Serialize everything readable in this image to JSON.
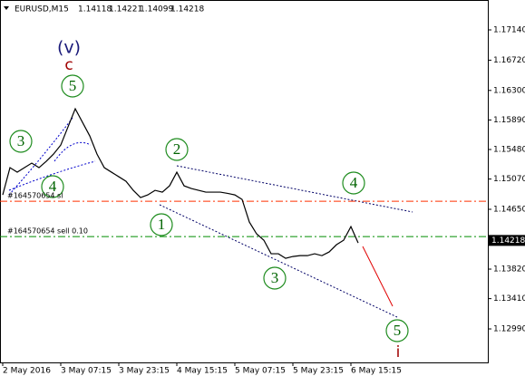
{
  "chart_data": {
    "type": "line",
    "title": "EURUSD,M15",
    "ohlc": [
      1.14118,
      1.14221,
      1.14099,
      1.14218
    ],
    "bid": 1.14218,
    "color": "#000000",
    "categories": [
      "2 May 2016",
      null,
      null,
      null,
      null,
      null,
      null,
      null,
      "3 May 07:15",
      null,
      null,
      null,
      null,
      null,
      null,
      null,
      "3 May 23:15",
      null,
      null,
      null,
      null,
      null,
      null,
      null,
      "4 May 15:15",
      null,
      null,
      null,
      null,
      null,
      null,
      null,
      "5 May 07:15",
      null,
      null,
      null,
      null,
      null,
      null,
      null,
      "5 May 23:15",
      null,
      null,
      null,
      null,
      null,
      null,
      null,
      "6 May 15:15",
      null,
      null,
      null,
      null,
      null,
      null,
      null,
      null,
      null,
      null,
      null,
      null,
      null,
      null,
      null,
      null,
      null,
      null
    ],
    "values": [
      1.1485,
      1.15228,
      1.15165,
      1.15228,
      1.15291,
      1.15228,
      1.15316,
      1.15416,
      1.15542,
      1.15794,
      1.16045,
      1.15857,
      1.15668,
      1.15416,
      1.15228,
      1.15165,
      1.15102,
      1.15039,
      1.14913,
      1.14813,
      1.1485,
      1.14913,
      1.14888,
      1.14976,
      1.15165,
      1.14976,
      1.14938,
      1.14913,
      1.14888,
      1.14888,
      1.14888,
      1.14871,
      1.1485,
      1.14787,
      1.14473,
      1.14309,
      1.14221,
      1.14033,
      1.14033,
      1.1397,
      1.13995,
      1.14007,
      1.14007,
      1.14033,
      1.14007,
      1.14058,
      1.14158,
      1.14221,
      1.1441,
      1.14184,
      null,
      null,
      null,
      null,
      null,
      null,
      null,
      null,
      null,
      null,
      null,
      null,
      null,
      null,
      null,
      null,
      null
    ],
    "ylim": [
      1.12525,
      1.17555
    ],
    "yticks": [
      {
        "value": 1.1714,
        "label": "1.17140"
      },
      {
        "value": 1.1672,
        "label": "1.16720"
      },
      {
        "value": 1.163,
        "label": "1.16300"
      },
      {
        "value": 1.1589,
        "label": "1.15890"
      },
      {
        "value": 1.1548,
        "label": "1.15480"
      },
      {
        "value": 1.1507,
        "label": "1.15070"
      },
      {
        "value": 1.1465,
        "label": "1.14650"
      },
      {
        "value": 1.1382,
        "label": "1.13820"
      },
      {
        "value": 1.1341,
        "label": "1.13410"
      },
      {
        "value": 1.1299,
        "label": "1.12990"
      }
    ],
    "orders": [
      {
        "label": "#164570654 sl",
        "value": 1.14762,
        "color": "#ff3000"
      },
      {
        "label": "#164570654 sell 0.10",
        "value": 1.14272,
        "color": "#008c00"
      }
    ],
    "wave_labels": {
      "degree": "(v)",
      "letter": "c",
      "minor": "i",
      "numbers": [
        "3",
        "4",
        "5",
        "2",
        "1",
        "3",
        "4",
        "5"
      ]
    }
  }
}
